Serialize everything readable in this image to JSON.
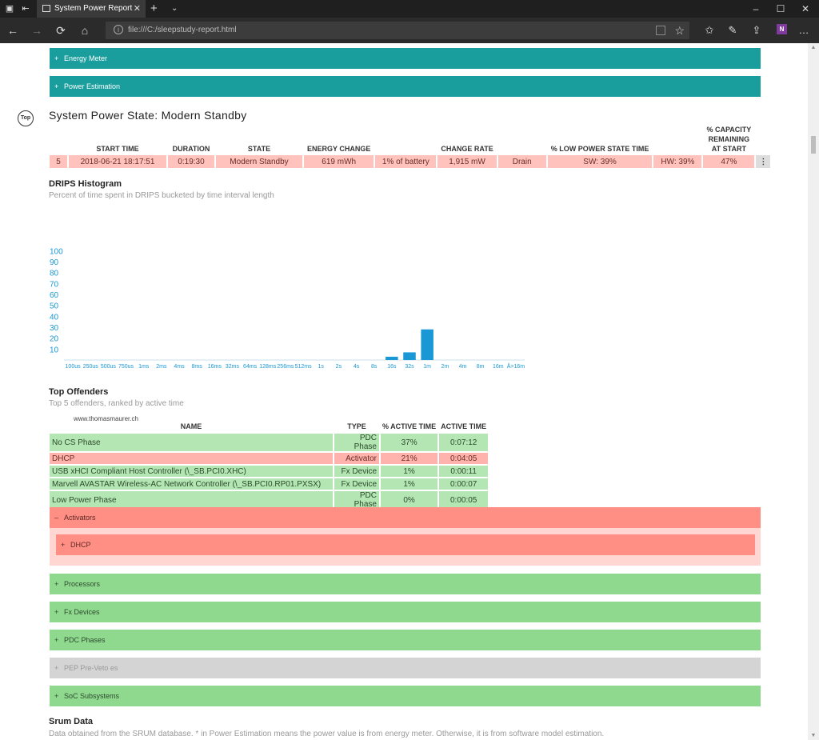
{
  "browser": {
    "tab_title": "System Power Report",
    "url": "file:///C:/sleepstudy-report.html",
    "new_tab": "+",
    "tab_menu": "⌄",
    "minimize": "–",
    "maximize": "☐",
    "close": "✕"
  },
  "nav": {
    "back": "←",
    "forward": "→",
    "refresh": "⟳",
    "home": "⌂",
    "star": "☆"
  },
  "sections_top": [
    {
      "sign": "+",
      "label": "Energy Meter"
    },
    {
      "sign": "+",
      "label": "Power Estimation"
    }
  ],
  "top_link": "Top",
  "power_state": {
    "title": "System Power State: Modern Standby",
    "columns": [
      "",
      "START TIME",
      "DURATION",
      "STATE",
      "ENERGY CHANGE",
      "",
      "CHANGE RATE",
      "",
      "% LOW POWER STATE TIME",
      "",
      "% CAPACITY REMAINING AT START",
      ""
    ],
    "row": [
      "5",
      "2018-06-21  18:17:51",
      "0:19:30",
      "Modern Standby",
      "619 mWh",
      "1% of battery",
      "1,915 mW",
      "Drain",
      "SW: 39%",
      "HW: 39%",
      "47%",
      "⋮"
    ]
  },
  "drips": {
    "title": "DRIPS Histogram",
    "subtitle": "Percent of time spent in DRIPS bucketed by time interval length"
  },
  "chart_data": {
    "type": "bar",
    "title": "DRIPS Histogram",
    "categories": [
      "100us",
      "250us",
      "500us",
      "750us",
      "1ms",
      "2ms",
      "4ms",
      "8ms",
      "16ms",
      "32ms",
      "64ms",
      "128ms",
      "256ms",
      "512ms",
      "1s",
      "2s",
      "4s",
      "8s",
      "16s",
      "32s",
      "1m",
      "2m",
      "4m",
      "8m",
      "16m",
      "Å>16m"
    ],
    "values": [
      0,
      0,
      0,
      0,
      0,
      0,
      0,
      0,
      0,
      0,
      0,
      0,
      0,
      0,
      0,
      0,
      0,
      0,
      3,
      7,
      28,
      0,
      0,
      0,
      0,
      0
    ],
    "yticks": [
      10,
      20,
      30,
      40,
      50,
      60,
      70,
      80,
      90,
      100
    ],
    "ylim": [
      0,
      100
    ],
    "color": "#1a98d6"
  },
  "offenders": {
    "title": "Top Offenders",
    "subtitle": "Top 5 offenders, ranked by active time",
    "watermark": "www.thomasmaurer.ch",
    "columns": [
      "NAME",
      "TYPE",
      "% ACTIVE TIME",
      "ACTIVE TIME"
    ],
    "rows": [
      {
        "name": "No CS Phase",
        "type": "PDC Phase",
        "pct": "37%",
        "time": "0:07:12",
        "status": "g"
      },
      {
        "name": "DHCP",
        "type": "Activator",
        "pct": "21%",
        "time": "0:04:05",
        "status": "r"
      },
      {
        "name": "USB xHCI Compliant Host Controller (\\_SB.PCI0.XHC)",
        "type": "Fx Device",
        "pct": "1%",
        "time": "0:00:11",
        "status": "g"
      },
      {
        "name": "Marvell AVASTAR Wireless-AC Network Controller (\\_SB.PCI0.RP01.PXSX)",
        "type": "Fx Device",
        "pct": "1%",
        "time": "0:00:07",
        "status": "g"
      },
      {
        "name": "Low Power Phase",
        "type": "PDC Phase",
        "pct": "0%",
        "time": "0:00:05",
        "status": "g"
      }
    ]
  },
  "activators": {
    "sign": "–",
    "label": "Activators",
    "child": {
      "sign": "+",
      "label": "DHCP"
    }
  },
  "sections_bottom": [
    {
      "sign": "+",
      "label": "Processors"
    },
    {
      "sign": "+",
      "label": "Fx Devices"
    },
    {
      "sign": "+",
      "label": "PDC Phases"
    },
    {
      "sign": "+",
      "label": "PEP Pre-Veto es"
    },
    {
      "sign": "+",
      "label": "SoC Subsystems"
    }
  ],
  "srum": {
    "title": "Srum Data",
    "subtitle": "Data obtained from the SRUM database. * in Power Estimation means the power value is from energy meter. Otherwise, it is from software model estimation."
  },
  "colors": {
    "teal": "#1a9d9d",
    "green": "#8fd98f",
    "red": "#ff8e84",
    "grey": "#d4d4d4",
    "chart": "#1a98d6"
  }
}
